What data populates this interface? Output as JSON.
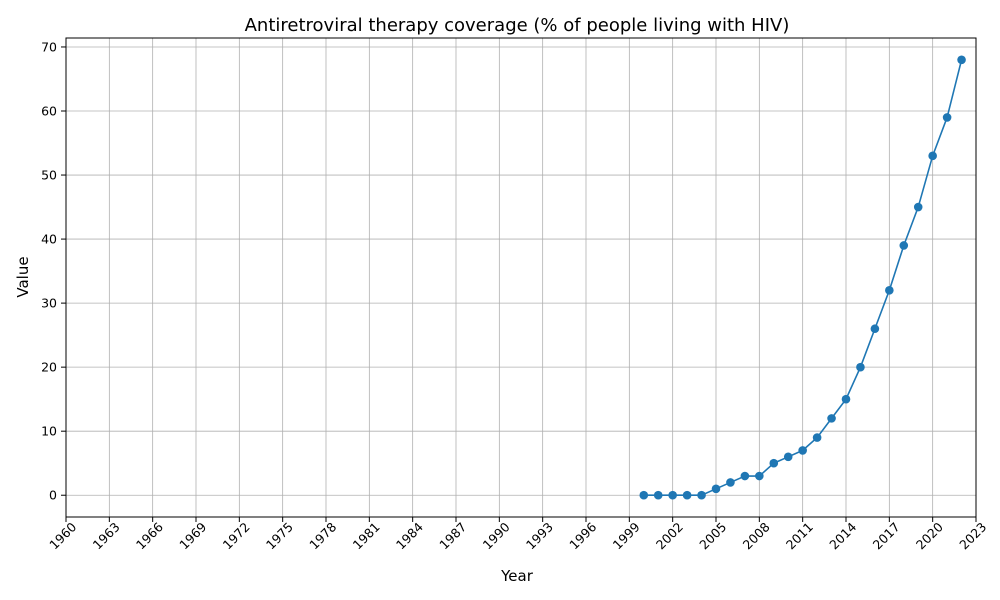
{
  "chart_data": {
    "type": "line",
    "title": "Antiretroviral therapy coverage (% of people living with HIV)",
    "xlabel": "Year",
    "ylabel": "Value",
    "xlim": [
      1960,
      2023
    ],
    "ylim": [
      -3.4,
      71.4
    ],
    "xticks": [
      1960,
      1963,
      1966,
      1969,
      1972,
      1975,
      1978,
      1981,
      1984,
      1987,
      1990,
      1993,
      1996,
      1999,
      2002,
      2005,
      2008,
      2011,
      2014,
      2017,
      2020,
      2023
    ],
    "yticks": [
      0,
      10,
      20,
      30,
      40,
      50,
      60,
      70
    ],
    "grid": true,
    "series": [
      {
        "color": "#1f77b4",
        "marker": "circle",
        "x": [
          2000,
          2001,
          2002,
          2003,
          2004,
          2005,
          2006,
          2007,
          2008,
          2009,
          2010,
          2011,
          2012,
          2013,
          2014,
          2015,
          2016,
          2017,
          2018,
          2019,
          2020,
          2021,
          2022
        ],
        "values": [
          0,
          0,
          0,
          0,
          0,
          1,
          2,
          3,
          3,
          5,
          6,
          7,
          9,
          12,
          15,
          20,
          26,
          32,
          39,
          45,
          53,
          59,
          68
        ]
      }
    ]
  }
}
